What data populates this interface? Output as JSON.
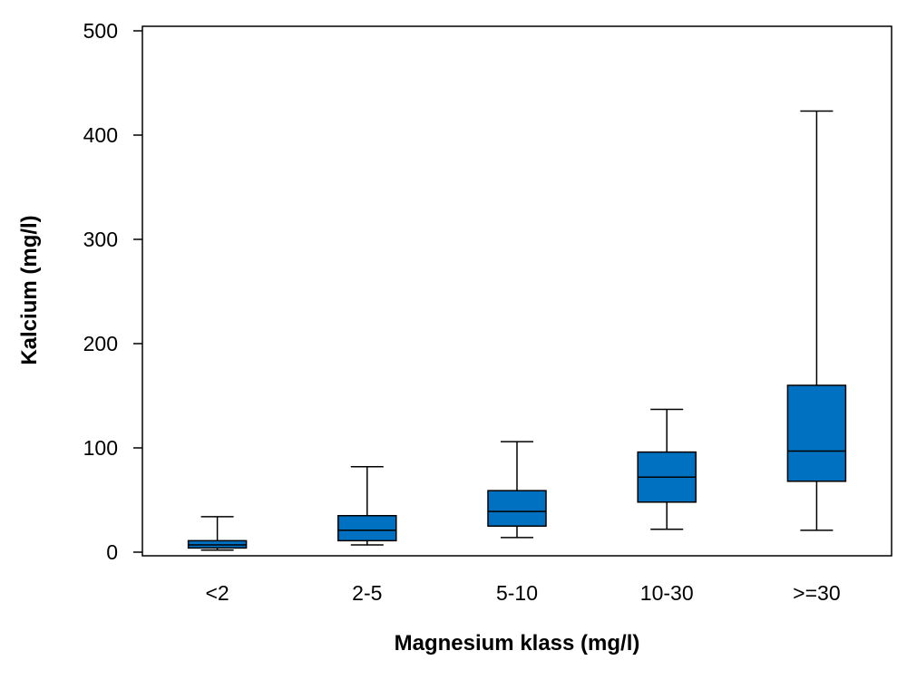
{
  "chart_data": {
    "type": "box",
    "title": "",
    "xlabel": "Magnesium klass (mg/l)",
    "ylabel": "Kalcium (mg/l)",
    "ylim": [
      0,
      500
    ],
    "yticks": [
      {
        "value": 0,
        "label": "0"
      },
      {
        "value": 100,
        "label": "100"
      },
      {
        "value": 200,
        "label": "200"
      },
      {
        "value": 300,
        "label": "300"
      },
      {
        "value": 400,
        "label": "400"
      },
      {
        "value": 500,
        "label": "500"
      }
    ],
    "categories": [
      "<2",
      "2-5",
      "5-10",
      "10-30",
      ">=30"
    ],
    "boxes": [
      {
        "category": "<2",
        "min": 2,
        "q1": 4,
        "median": 7,
        "q3": 11,
        "max": 34
      },
      {
        "category": "2-5",
        "min": 7,
        "q1": 11,
        "median": 21,
        "q3": 35,
        "max": 82
      },
      {
        "category": "5-10",
        "min": 14,
        "q1": 25,
        "median": 39,
        "q3": 59,
        "max": 106
      },
      {
        "category": "10-30",
        "min": 22,
        "q1": 48,
        "median": 72,
        "q3": 96,
        "max": 137
      },
      {
        "category": ">=30",
        "min": 21,
        "q1": 68,
        "median": 97,
        "q3": 160,
        "max": 423
      }
    ],
    "grid": false,
    "legend": "none",
    "colors": {
      "box_fill": "#0070c0",
      "stroke": "#000000"
    }
  }
}
